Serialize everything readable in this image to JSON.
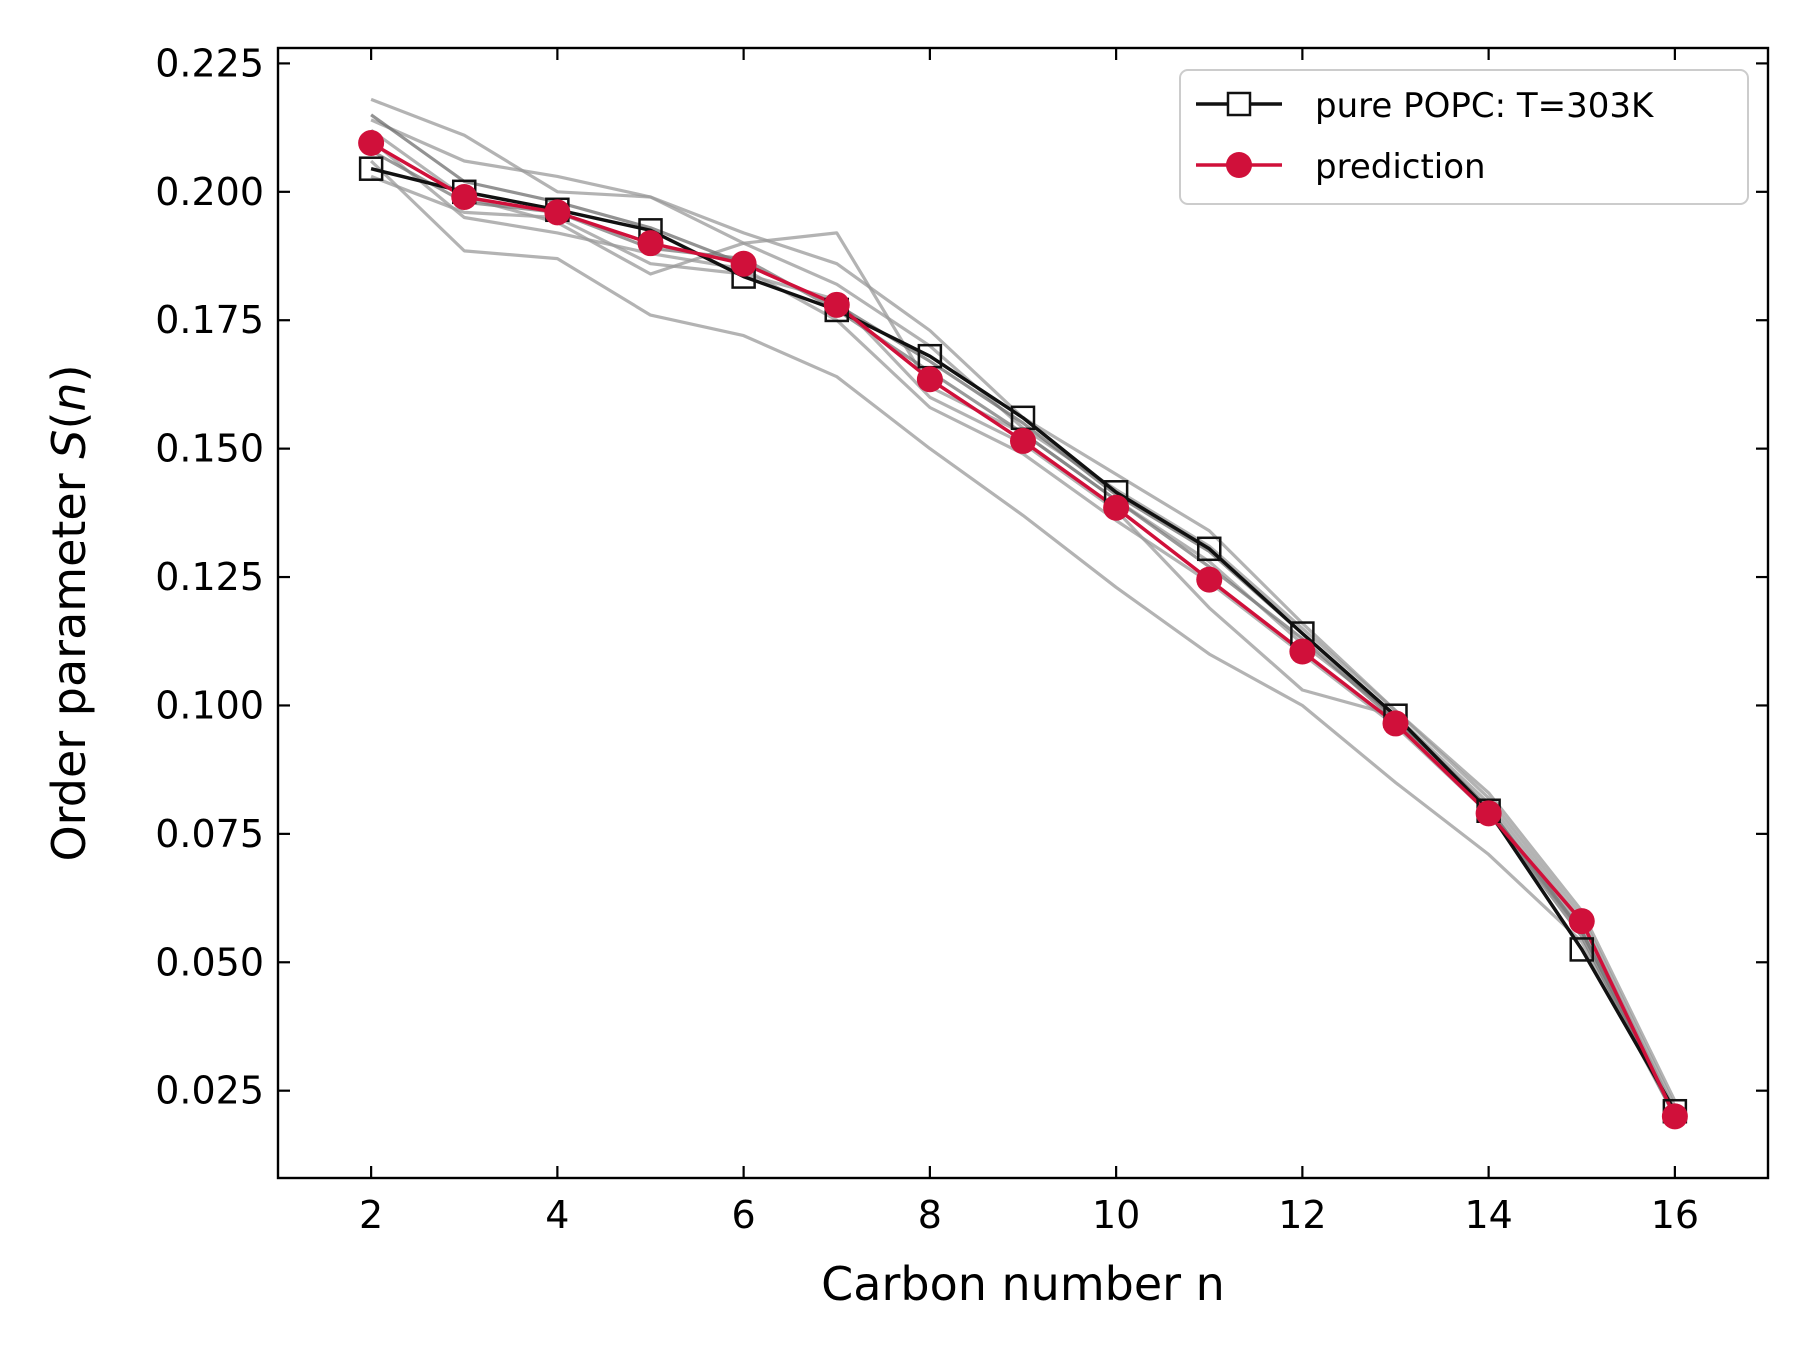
{
  "chart_data": {
    "type": "line",
    "xlabel": "Carbon number n",
    "ylabel_prefix": "Order parameter ",
    "ylabel_symbol": "S",
    "ylabel_arg": "n",
    "xlim": [
      1,
      17
    ],
    "ylim": [
      0.008,
      0.228
    ],
    "x_ticks": [
      2,
      4,
      6,
      8,
      10,
      12,
      14,
      16
    ],
    "x_tick_labels": [
      "2",
      "4",
      "6",
      "8",
      "10",
      "12",
      "14",
      "16"
    ],
    "y_ticks": [
      0.025,
      0.05,
      0.075,
      0.1,
      0.125,
      0.15,
      0.175,
      0.2,
      0.225
    ],
    "y_tick_labels": [
      "0.025",
      "0.050",
      "0.075",
      "0.100",
      "0.125",
      "0.150",
      "0.175",
      "0.200",
      "0.225"
    ],
    "grid": false,
    "legend_position": "top-right",
    "x": [
      2,
      3,
      4,
      5,
      6,
      7,
      8,
      9,
      10,
      11,
      12,
      13,
      14,
      15,
      16
    ],
    "series": [
      {
        "name": "pure POPC: T=303K",
        "color": "#111111",
        "marker": "square-open",
        "values": [
          0.2045,
          0.2,
          0.1965,
          0.1925,
          0.1835,
          0.177,
          0.168,
          0.156,
          0.1415,
          0.1305,
          0.114,
          0.098,
          0.0795,
          0.0525,
          0.021
        ]
      },
      {
        "name": "prediction",
        "color": "#d0103a",
        "marker": "circle-filled",
        "values": [
          0.2095,
          0.199,
          0.196,
          0.19,
          0.186,
          0.178,
          0.1635,
          0.1515,
          0.1385,
          0.1245,
          0.1105,
          0.0965,
          0.079,
          0.058,
          0.02
        ]
      }
    ],
    "background_series": [
      {
        "color": "#9a9a9a",
        "values": [
          0.218,
          0.211,
          0.2,
          0.199,
          0.192,
          0.186,
          0.173,
          0.156,
          0.145,
          0.134,
          0.116,
          0.099,
          0.083,
          0.06,
          0.023
        ]
      },
      {
        "color": "#9a9a9a",
        "values": [
          0.214,
          0.206,
          0.203,
          0.199,
          0.19,
          0.182,
          0.17,
          0.154,
          0.142,
          0.131,
          0.115,
          0.099,
          0.082,
          0.059,
          0.022
        ]
      },
      {
        "color": "#9a9a9a",
        "values": [
          0.212,
          0.199,
          0.194,
          0.184,
          0.19,
          0.192,
          0.162,
          0.153,
          0.14,
          0.128,
          0.112,
          0.098,
          0.081,
          0.058,
          0.021
        ]
      },
      {
        "color": "#9a9a9a",
        "values": [
          0.203,
          0.196,
          0.195,
          0.186,
          0.184,
          0.179,
          0.16,
          0.151,
          0.138,
          0.119,
          0.103,
          0.098,
          0.08,
          0.057,
          0.021
        ]
      },
      {
        "color": "#9a9a9a",
        "values": [
          0.21,
          0.195,
          0.192,
          0.188,
          0.185,
          0.175,
          0.158,
          0.149,
          0.136,
          0.124,
          0.11,
          0.096,
          0.079,
          0.056,
          0.02
        ]
      },
      {
        "color": "#9a9a9a",
        "values": [
          0.206,
          0.1885,
          0.187,
          0.176,
          0.172,
          0.164,
          0.15,
          0.137,
          0.123,
          0.11,
          0.1,
          0.085,
          0.071,
          0.054,
          0.02
        ]
      },
      {
        "color": "#6f6f6f",
        "values": [
          0.215,
          0.202,
          0.198,
          0.193,
          0.186,
          0.178,
          0.167,
          0.155,
          0.141,
          0.13,
          0.114,
          0.0975,
          0.08,
          0.056,
          0.0205
        ]
      },
      {
        "color": "#7a7a7a",
        "values": [
          0.208,
          0.198,
          0.196,
          0.189,
          0.187,
          0.177,
          0.165,
          0.153,
          0.14,
          0.127,
          0.113,
          0.097,
          0.079,
          0.055,
          0.02
        ]
      }
    ]
  }
}
